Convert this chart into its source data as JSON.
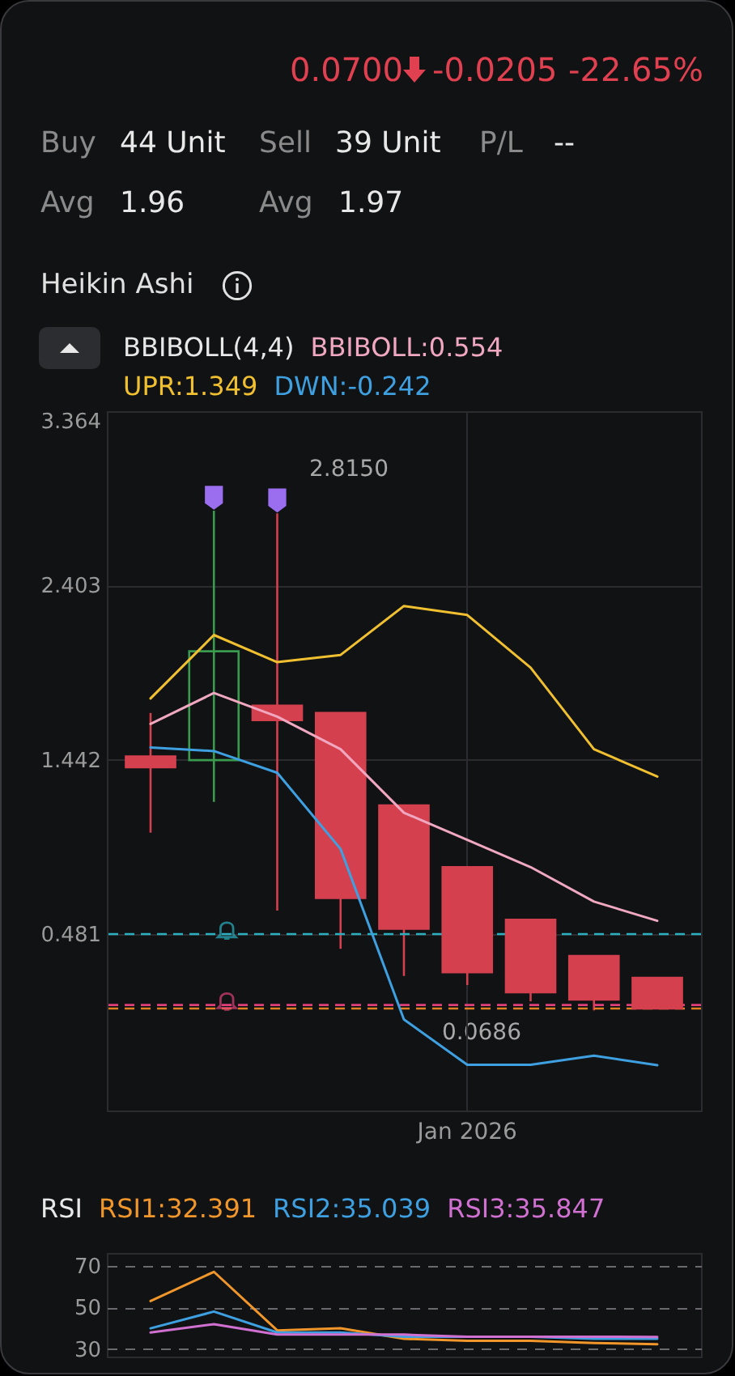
{
  "chart_data": [
    {
      "type": "other",
      "annotations": [
        "0.0700",
        "-0.0205",
        "-22.65%",
        "Buy",
        "44 Unit",
        "Sell",
        "39 Unit",
        "P/L",
        "--",
        "Avg",
        "1.96",
        "Avg",
        "1.97",
        "Heikin Ashi"
      ]
    },
    {
      "type": "candlestick",
      "categories": [
        null,
        null,
        null,
        null,
        null,
        "Jan 2026",
        null,
        null,
        null
      ],
      "ohlc": [
        [
          1.46,
          1.7,
          1.04,
          1.4
        ],
        [
          1.44,
          2.815,
          1.21,
          2.04
        ],
        [
          1.74,
          2.8,
          0.61,
          1.66
        ],
        [
          1.7,
          1.7,
          0.4,
          0.68
        ],
        [
          1.19,
          1.19,
          0.25,
          0.51
        ],
        [
          0.85,
          0.85,
          0.2,
          0.27
        ],
        [
          0.56,
          0.56,
          0.11,
          0.16
        ],
        [
          0.36,
          0.36,
          0.06,
          0.12
        ],
        [
          0.24,
          0.24,
          0.0686,
          0.07
        ]
      ],
      "colors": [
        "#d5404f",
        "#3a9a4e",
        "#d5404f",
        "#d5404f",
        "#d5404f",
        "#d5404f",
        "#d5404f",
        "#d5404f",
        "#d5404f"
      ],
      "legend_title": "BBIBOLL(4,4)",
      "legend": "top left",
      "series": [
        {
          "name": "BBIBOLL:0.554",
          "color": "#f0a8c0",
          "type": "line",
          "values": [
            1.64,
            1.81,
            1.68,
            1.5,
            1.15,
            1.0,
            0.85,
            0.66,
            0.554
          ]
        },
        {
          "name": "UPR:1.349",
          "color": "#f0c030",
          "type": "line",
          "values": [
            1.78,
            2.13,
            1.98,
            2.02,
            2.29,
            2.24,
            1.95,
            1.5,
            1.349
          ]
        },
        {
          "name": "DWN:-0.242",
          "color": "#3ea0e0",
          "type": "line",
          "values": [
            1.51,
            1.49,
            1.37,
            0.95,
            0.01,
            -0.24,
            -0.24,
            -0.19,
            -0.242
          ]
        }
      ],
      "ylim": [
        -0.492,
        3.364
      ],
      "yticks": [
        3.364,
        2.403,
        1.442,
        0.481
      ],
      "grid": true,
      "ref_lines": [
        {
          "axis": "y",
          "value": 0.481,
          "color": "#2ab0c0",
          "line_style": "dashed"
        },
        {
          "axis": "y",
          "value": 0.09,
          "color": "#e0407a",
          "line_style": "dashed"
        },
        {
          "axis": "y",
          "value": 0.07,
          "color": "#e08020",
          "line_style": "dashed"
        }
      ],
      "annotations": [
        "2.8150",
        "0.0686"
      ]
    },
    {
      "type": "line",
      "categories": [
        null,
        null,
        null,
        null,
        null,
        null,
        null,
        null,
        null
      ],
      "legend_title": "RSI",
      "legend": "top left",
      "series": [
        {
          "name": "RSI1:32.391",
          "color": "#f0962a",
          "values": [
            53,
            67,
            39,
            40,
            35,
            34,
            34,
            33,
            32.391
          ]
        },
        {
          "name": "RSI2:35.039",
          "color": "#3ea0e0",
          "values": [
            40,
            48,
            38,
            38,
            36,
            36,
            36,
            35,
            35.039
          ]
        },
        {
          "name": "RSI3:35.847",
          "color": "#d070d0",
          "values": [
            38,
            42,
            37,
            37,
            37,
            36,
            36,
            36,
            35.847
          ]
        }
      ],
      "ylim": [
        26.5,
        76
      ],
      "yticks": [
        30,
        50,
        70
      ],
      "grid": true
    }
  ]
}
